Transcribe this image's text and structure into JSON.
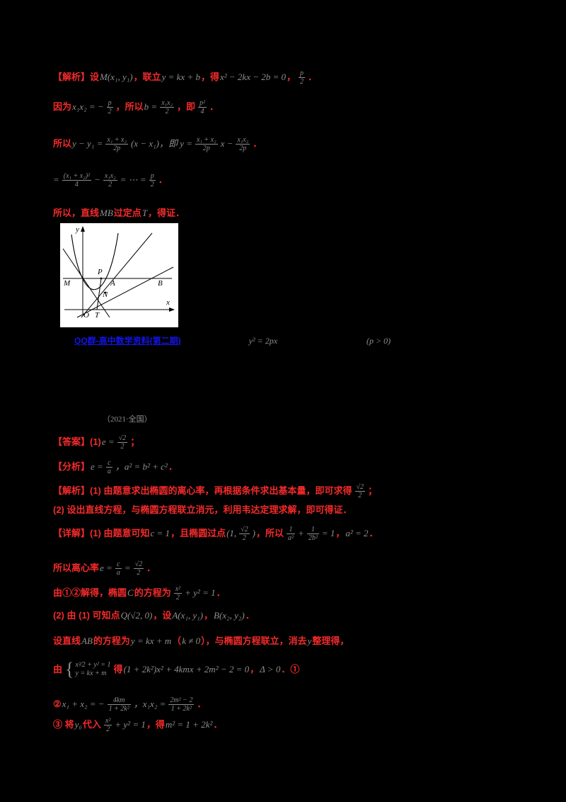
{
  "link": {
    "text": "QQ群-高中数学资料(第二期)",
    "frag1": "y² = 2px",
    "frag2": "(p > 0)"
  },
  "source": {
    "text": "（2021·全国）"
  },
  "figure": {
    "labels": {
      "y": "y",
      "x": "x",
      "M": "M",
      "P": "P",
      "A": "A",
      "B": "B",
      "N": "N",
      "O": "O",
      "T": "T"
    }
  },
  "lines": [
    {
      "segments": [
        {
          "t": "【解析】设 ",
          "c": "red"
        },
        {
          "t": "M(x₁, y₁)",
          "c": "gray"
        },
        {
          "t": "，联立 ",
          "c": "red"
        },
        {
          "t": "y = kx + b",
          "c": "gray"
        },
        {
          "t": "，得 ",
          "c": "red"
        },
        {
          "t": "x² − 2kx − 2b = 0",
          "c": "gray"
        },
        {
          "t": "，",
          "c": "red"
        },
        {
          "num": "p",
          "den": "2",
          "c": "gray"
        },
        {
          "t": "．",
          "c": "red"
        }
      ]
    },
    {
      "segments": [
        {
          "t": "因为 ",
          "c": "red"
        },
        {
          "t": "x₁x₂ = −",
          "c": "gray"
        },
        {
          "num": "p",
          "den": "2",
          "c": "gray"
        },
        {
          "t": "，所以 ",
          "c": "red"
        },
        {
          "t": "b =",
          "c": "gray"
        },
        {
          "num": "x₁x₂",
          "den": "2",
          "c": "gray"
        },
        {
          "t": "，即 ",
          "c": "red"
        },
        {
          "num": "p²",
          "den": "4",
          "c": "gray"
        },
        {
          "t": "．",
          "c": "red"
        }
      ]
    },
    {
      "segments": [
        {
          "t": "所以 ",
          "c": "red"
        },
        {
          "t": "y − y₁ =",
          "c": "gray"
        },
        {
          "num": "x₁ + x₂",
          "den": "2p",
          "c": "gray"
        },
        {
          "t": "(x − x₁)，即 y =",
          "c": "gray"
        },
        {
          "num": "x₁ + x₂",
          "den": "2p",
          "c": "gray"
        },
        {
          "t": "x −",
          "c": "gray"
        },
        {
          "num": "x₁x₂",
          "den": "2p",
          "c": "gray"
        },
        {
          "t": "．",
          "c": "red"
        }
      ]
    },
    {
      "segments": [
        {
          "t": "=",
          "c": "gray"
        },
        {
          "num": "(x₁ + x₂)²",
          "den": "4",
          "c": "gray"
        },
        {
          "t": "−",
          "c": "gray"
        },
        {
          "num": "x₁x₂",
          "den": "2",
          "c": "gray"
        },
        {
          "t": "= ⋯ =",
          "c": "gray"
        },
        {
          "num": "p",
          "den": "2",
          "c": "gray"
        },
        {
          "t": "．",
          "c": "red"
        }
      ]
    },
    {
      "segments": [
        {
          "t": "所以，直线 ",
          "c": "red"
        },
        {
          "t": "MB",
          "c": "gray"
        },
        {
          "t": " 过定点 ",
          "c": "red"
        },
        {
          "t": "T",
          "c": "gray"
        },
        {
          "t": "，得证．",
          "c": "red"
        }
      ]
    },
    {
      "segments": [
        {
          "t": "【答案】(1) ",
          "c": "red"
        },
        {
          "t": "e =",
          "c": "gray"
        },
        {
          "num": "√2",
          "den": "2",
          "c": "gray"
        },
        {
          "t": "；",
          "c": "red"
        }
      ]
    },
    {
      "segments": [
        {
          "t": "【分析】",
          "c": "red"
        },
        {
          "t": "e =",
          "c": "gray"
        },
        {
          "num": "c",
          "den": "a",
          "c": "gray"
        },
        {
          "t": "，a² = b² + c²",
          "c": "gray"
        },
        {
          "t": "．",
          "c": "red"
        }
      ]
    },
    {
      "segments": [
        {
          "t": "【解析】(1) 由题意求出椭圆的离心率，再根据条件求出基本量，即可求得 ",
          "c": "red"
        },
        {
          "num": "√2",
          "den": "2",
          "c": "gray"
        },
        {
          "t": "；",
          "c": "red"
        }
      ]
    },
    {
      "segments": [
        {
          "t": "(2) 设出直线方程，与椭圆方程联立消元，利用韦达定理求解，即可得证．",
          "c": "red"
        }
      ]
    },
    {
      "segments": [
        {
          "t": "【详解】(1) 由题意可知 ",
          "c": "red"
        },
        {
          "t": "c = 1",
          "c": "gray"
        },
        {
          "t": "，且椭圆过点 ",
          "c": "red"
        },
        {
          "t": "(1,",
          "c": "gray"
        },
        {
          "num": "√2",
          "den": "2",
          "c": "gray"
        },
        {
          "t": ")",
          "c": "gray"
        },
        {
          "t": "，所以 ",
          "c": "red"
        },
        {
          "num": "1",
          "den": "a²",
          "c": "gray"
        },
        {
          "t": "+",
          "c": "gray"
        },
        {
          "num": "1",
          "den": "2b²",
          "c": "gray"
        },
        {
          "t": "= 1",
          "c": "gray"
        },
        {
          "t": "，",
          "c": "red"
        },
        {
          "t": "a² = 2",
          "c": "gray"
        },
        {
          "t": "．",
          "c": "red"
        }
      ]
    },
    {
      "segments": [
        {
          "t": "所以离心率 ",
          "c": "red"
        },
        {
          "t": "e =",
          "c": "gray"
        },
        {
          "num": "c",
          "den": "a",
          "c": "gray"
        },
        {
          "t": "=",
          "c": "gray"
        },
        {
          "num": "√2",
          "den": "2",
          "c": "gray"
        },
        {
          "t": "．",
          "c": "red"
        }
      ]
    },
    {
      "segments": [
        {
          "t": "由①②解得，椭圆 ",
          "c": "red"
        },
        {
          "t": "C",
          "c": "gray"
        },
        {
          "t": " 的方程为 ",
          "c": "red"
        },
        {
          "num": "x²",
          "den": "2",
          "c": "gray"
        },
        {
          "t": "+ y² = 1",
          "c": "gray"
        },
        {
          "t": "．",
          "c": "red"
        }
      ]
    },
    {
      "segments": [
        {
          "t": "(2) 由 (1) 可知点 ",
          "c": "red"
        },
        {
          "t": "Q(√2, 0)",
          "c": "gray"
        },
        {
          "t": "，设 ",
          "c": "red"
        },
        {
          "t": "A(x₁, y₁)",
          "c": "gray"
        },
        {
          "t": "，",
          "c": "red"
        },
        {
          "t": "B(x₂, y₂)",
          "c": "gray"
        },
        {
          "t": "．",
          "c": "red"
        }
      ]
    },
    {
      "segments": [
        {
          "t": "设直线 ",
          "c": "red"
        },
        {
          "t": "AB",
          "c": "gray"
        },
        {
          "t": " 的方程为 ",
          "c": "red"
        },
        {
          "t": "y = kx + m",
          "c": "gray"
        },
        {
          "t": "（",
          "c": "red"
        },
        {
          "t": "k ≠ 0",
          "c": "gray"
        },
        {
          "t": "），与椭圆方程联立，消去 ",
          "c": "red"
        },
        {
          "t": "y",
          "c": "gray"
        },
        {
          "t": " 整理得，",
          "c": "red"
        }
      ]
    },
    {
      "segments": [
        {
          "t": "由 ",
          "c": "red"
        },
        {
          "rows": [
            "x²⁄2 + y² = 1",
            "y = kx + m"
          ],
          "c": "gray"
        },
        {
          "t": " 得 ",
          "c": "red"
        },
        {
          "t": "(1 + 2k²)x² + 4kmx + 2m² − 2 = 0",
          "c": "gray"
        },
        {
          "t": "，",
          "c": "red"
        },
        {
          "t": "Δ > 0",
          "c": "gray"
        },
        {
          "t": "．①",
          "c": "red"
        }
      ]
    },
    {
      "segments": [
        {
          "t": "② ",
          "c": "red"
        },
        {
          "t": "x₁ + x₂ = −",
          "c": "gray"
        },
        {
          "num": "4km",
          "den": "1 + 2k²",
          "c": "gray"
        },
        {
          "t": "，x₁x₂ =",
          "c": "gray"
        },
        {
          "num": "2m² − 2",
          "den": "1 + 2k²",
          "c": "gray"
        },
        {
          "t": "．",
          "c": "red"
        }
      ]
    },
    {
      "segments": [
        {
          "t": "③ 将 ",
          "c": "red"
        },
        {
          "t": "y₀",
          "c": "gray"
        },
        {
          "t": " 代入 ",
          "c": "red"
        },
        {
          "num": "x²",
          "den": "2",
          "c": "gray"
        },
        {
          "t": "+ y² = 1",
          "c": "gray"
        },
        {
          "t": "，得 ",
          "c": "red"
        },
        {
          "t": "m² = 1 + 2k²",
          "c": "gray"
        },
        {
          "t": "．",
          "c": "red"
        }
      ]
    }
  ]
}
